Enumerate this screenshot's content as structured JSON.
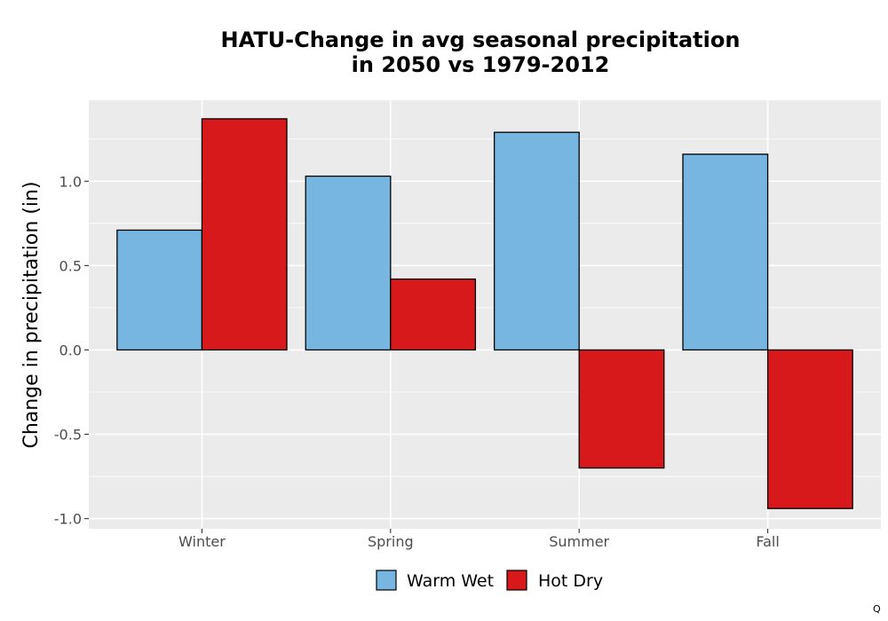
{
  "chart_data": {
    "type": "bar",
    "title_lines": [
      "HATU-Change in avg seasonal precipitation",
      "in 2050 vs 1979-2012"
    ],
    "xlabel": "",
    "ylabel": "Change in precipitation (in)",
    "categories": [
      "Winter",
      "Spring",
      "Summer",
      "Fall"
    ],
    "series": [
      {
        "name": "Warm Wet",
        "color": "#77b6e1",
        "values": [
          0.71,
          1.03,
          1.29,
          1.16
        ]
      },
      {
        "name": "Hot Dry",
        "color": "#d7191c",
        "values": [
          1.37,
          0.42,
          -0.7,
          -0.94
        ]
      }
    ],
    "ylim": [
      -1.06,
      1.48
    ],
    "yticks": [
      -1.0,
      -0.5,
      0.0,
      0.5,
      1.0
    ],
    "ytick_labels": [
      "-1.0",
      "-0.5",
      "0.0",
      "0.5",
      "1.0"
    ],
    "grid": true,
    "legend_position": "bottom",
    "panel_background": "#ebebeb",
    "bar_outline": "#000000"
  },
  "corner_mark": "Q"
}
